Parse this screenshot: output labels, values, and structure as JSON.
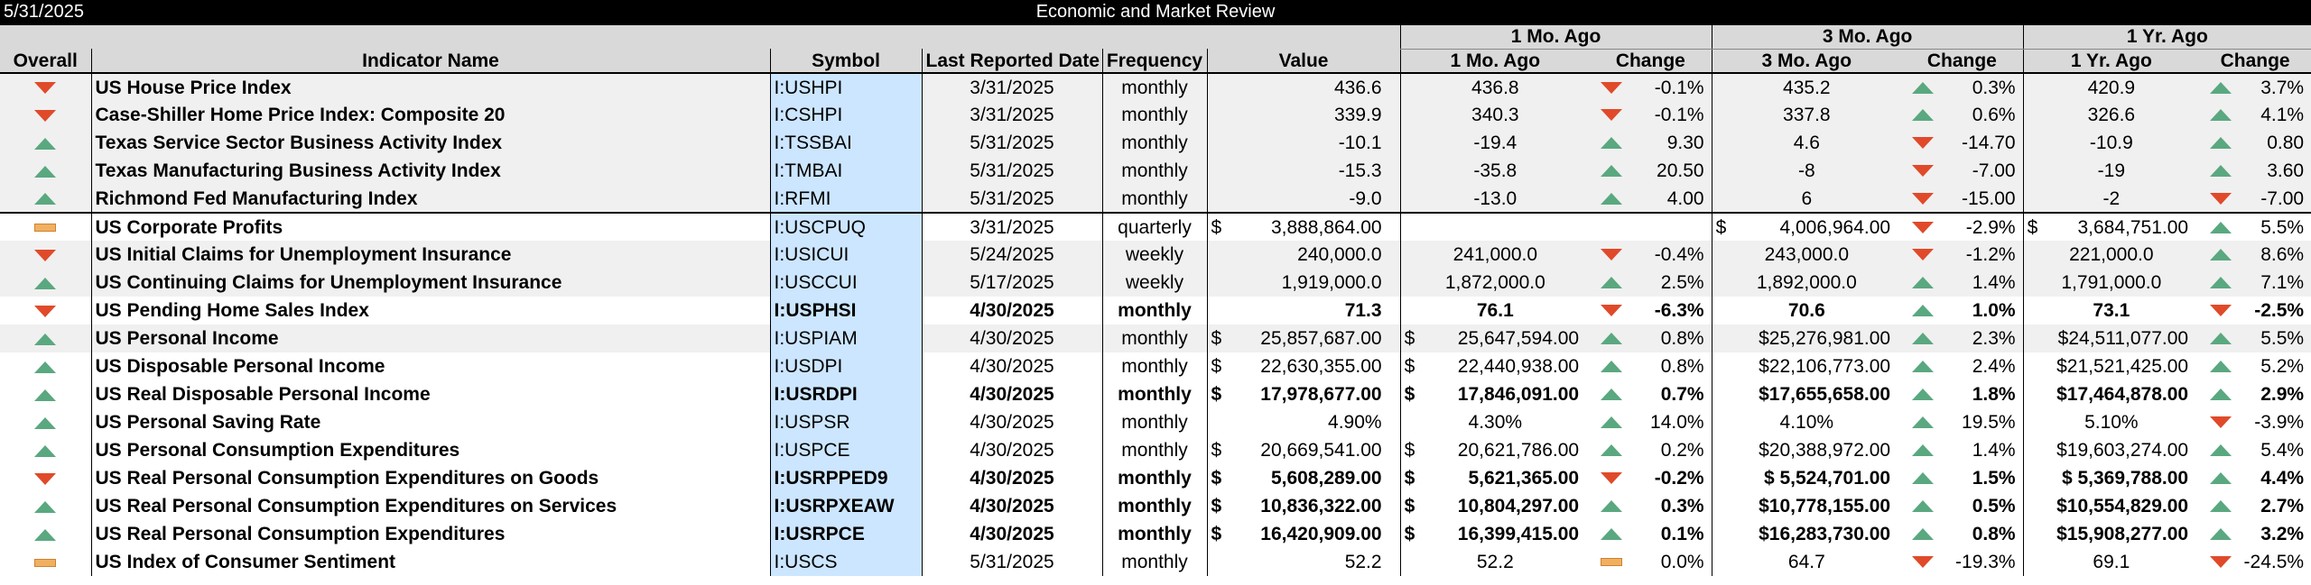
{
  "header": {
    "date": "5/31/2025",
    "title": "Economic and Market Review",
    "group_labels": [
      "1 Mo. Ago",
      "3 Mo. Ago",
      "1 Yr. Ago"
    ],
    "columns": [
      "Overall",
      "Indicator Name",
      "Symbol",
      "Last Reported Date",
      "Frequency",
      "Value",
      "1 Mo. Ago",
      "Change",
      "3 Mo. Ago",
      "Change",
      "1 Yr. Ago",
      "Change"
    ]
  },
  "colors": {
    "up": "#5aa880",
    "down": "#e04a2a",
    "flat": "#f0b060",
    "symbol_bg": "#cce6ff"
  },
  "rows": [
    {
      "overall": "down",
      "name": "US House Price Index",
      "symbol": "I:USHPI",
      "date": "3/31/2025",
      "freq": "monthly",
      "value": "436.6",
      "m1": "436.8",
      "m1_dir": "down",
      "m1_chg": "-0.1%",
      "m3": "435.2",
      "m3_dir": "up",
      "m3_chg": "0.3%",
      "y1": "420.9",
      "y1_dir": "up",
      "y1_chg": "3.7%",
      "group": "g1",
      "bold": false,
      "money": false
    },
    {
      "overall": "down",
      "name": "Case-Shiller Home Price Index: Composite 20",
      "symbol": "I:CSHPI",
      "date": "3/31/2025",
      "freq": "monthly",
      "value": "339.9",
      "m1": "340.3",
      "m1_dir": "down",
      "m1_chg": "-0.1%",
      "m3": "337.8",
      "m3_dir": "up",
      "m3_chg": "0.6%",
      "y1": "326.6",
      "y1_dir": "up",
      "y1_chg": "4.1%",
      "group": "g1",
      "bold": false,
      "money": false
    },
    {
      "overall": "up",
      "name": "Texas Service Sector Business Activity Index",
      "symbol": "I:TSSBAI",
      "date": "5/31/2025",
      "freq": "monthly",
      "value": "-10.1",
      "m1": "-19.4",
      "m1_dir": "up",
      "m1_chg": "9.30",
      "m3": "4.6",
      "m3_dir": "down",
      "m3_chg": "-14.70",
      "y1": "-10.9",
      "y1_dir": "up",
      "y1_chg": "0.80",
      "group": "g1",
      "bold": false,
      "money": false
    },
    {
      "overall": "up",
      "name": "Texas Manufacturing Business Activity Index",
      "symbol": "I:TMBAI",
      "date": "5/31/2025",
      "freq": "monthly",
      "value": "-15.3",
      "m1": "-35.8",
      "m1_dir": "up",
      "m1_chg": "20.50",
      "m3": "-8",
      "m3_dir": "down",
      "m3_chg": "-7.00",
      "y1": "-19",
      "y1_dir": "up",
      "y1_chg": "3.60",
      "group": "g1",
      "bold": false,
      "money": false
    },
    {
      "overall": "up",
      "name": "Richmond Fed Manufacturing Index",
      "symbol": "I:RFMI",
      "date": "5/31/2025",
      "freq": "monthly",
      "value": "-9.0",
      "m1": "-13.0",
      "m1_dir": "up",
      "m1_chg": "4.00",
      "m3": "6",
      "m3_dir": "down",
      "m3_chg": "-15.00",
      "y1": "-2",
      "y1_dir": "down",
      "y1_chg": "-7.00",
      "group": "g1",
      "bold": false,
      "money": false
    },
    {
      "overall": "flat",
      "name": "US Corporate Profits",
      "symbol": "I:USCPUQ",
      "date": "3/31/2025",
      "freq": "quarterly",
      "value": "3,888,864.00",
      "m1": "",
      "m1_dir": "",
      "m1_chg": "",
      "m3": "4,006,964.00",
      "m3_dir": "down",
      "m3_chg": "-2.9%",
      "y1": "3,684,751.00",
      "y1_dir": "up",
      "y1_chg": "5.5%",
      "group": "g2",
      "bold": false,
      "money": true,
      "sep": true
    },
    {
      "overall": "down",
      "name": "US Initial Claims for Unemployment Insurance",
      "symbol": "I:USICUI",
      "date": "5/24/2025",
      "freq": "weekly",
      "value": "240,000.0",
      "m1": "241,000.0",
      "m1_dir": "down",
      "m1_chg": "-0.4%",
      "m3": "243,000.0",
      "m3_dir": "down",
      "m3_chg": "-1.2%",
      "y1": "221,000.0",
      "y1_dir": "up",
      "y1_chg": "8.6%",
      "group": "g1",
      "bold": false,
      "money": false
    },
    {
      "overall": "up",
      "name": "US Continuing Claims for Unemployment Insurance",
      "symbol": "I:USCCUI",
      "date": "5/17/2025",
      "freq": "weekly",
      "value": "1,919,000.0",
      "m1": "1,872,000.0",
      "m1_dir": "up",
      "m1_chg": "2.5%",
      "m3": "1,892,000.0",
      "m3_dir": "up",
      "m3_chg": "1.4%",
      "y1": "1,791,000.0",
      "y1_dir": "up",
      "y1_chg": "7.1%",
      "group": "g1",
      "bold": false,
      "money": false
    },
    {
      "overall": "down",
      "name": "US Pending Home Sales Index",
      "symbol": "I:USPHSI",
      "date": "4/30/2025",
      "freq": "monthly",
      "value": "71.3",
      "m1": "76.1",
      "m1_dir": "down",
      "m1_chg": "-6.3%",
      "m3": "70.6",
      "m3_dir": "up",
      "m3_chg": "1.0%",
      "y1": "73.1",
      "y1_dir": "down",
      "y1_chg": "-2.5%",
      "group": "g2",
      "bold": true,
      "money": false,
      "boldvals": false
    },
    {
      "overall": "up",
      "name": "US Personal Income",
      "symbol": "I:USPIAM",
      "date": "4/30/2025",
      "freq": "monthly",
      "value": "25,857,687.00",
      "m1": "25,647,594.00",
      "m1_dir": "up",
      "m1_chg": "0.8%",
      "m3": "$25,276,981.00",
      "m3_dir": "up",
      "m3_chg": "2.3%",
      "y1": "$24,511,077.00",
      "y1_dir": "up",
      "y1_chg": "5.5%",
      "group": "g1",
      "bold": false,
      "money": true
    },
    {
      "overall": "up",
      "name": "US Disposable Personal Income",
      "symbol": "I:USDPI",
      "date": "4/30/2025",
      "freq": "monthly",
      "value": "22,630,355.00",
      "m1": "22,440,938.00",
      "m1_dir": "up",
      "m1_chg": "0.8%",
      "m3": "$22,106,773.00",
      "m3_dir": "up",
      "m3_chg": "2.4%",
      "y1": "$21,521,425.00",
      "y1_dir": "up",
      "y1_chg": "5.2%",
      "group": "g2",
      "bold": false,
      "money": true,
      "boldname": true
    },
    {
      "overall": "up",
      "name": "US Real Disposable Personal Income",
      "symbol": "I:USRDPI",
      "date": "4/30/2025",
      "freq": "monthly",
      "value": "17,978,677.00",
      "m1": "17,846,091.00",
      "m1_dir": "up",
      "m1_chg": "0.7%",
      "m3": "$17,655,658.00",
      "m3_dir": "up",
      "m3_chg": "1.8%",
      "y1": "$17,464,878.00",
      "y1_dir": "up",
      "y1_chg": "2.9%",
      "group": "g2",
      "bold": true,
      "money": true
    },
    {
      "overall": "up",
      "name": "US Personal Saving Rate",
      "symbol": "I:USPSR",
      "date": "4/30/2025",
      "freq": "monthly",
      "value": "4.90%",
      "m1": "4.30%",
      "m1_dir": "up",
      "m1_chg": "14.0%",
      "m3": "4.10%",
      "m3_dir": "up",
      "m3_chg": "19.5%",
      "y1": "5.10%",
      "y1_dir": "down",
      "y1_chg": "-3.9%",
      "group": "g2",
      "bold": false,
      "money": false,
      "boldname": true
    },
    {
      "overall": "up",
      "name": "US Personal Consumption Expenditures",
      "symbol": "I:USPCE",
      "date": "4/30/2025",
      "freq": "monthly",
      "value": "20,669,541.00",
      "m1": "20,621,786.00",
      "m1_dir": "up",
      "m1_chg": "0.2%",
      "m3": "$20,388,972.00",
      "m3_dir": "up",
      "m3_chg": "1.4%",
      "y1": "$19,603,274.00",
      "y1_dir": "up",
      "y1_chg": "5.4%",
      "group": "g2",
      "bold": false,
      "money": true,
      "boldname": true
    },
    {
      "overall": "down",
      "name": "US Real Personal Consumption Expenditures on Goods",
      "symbol": "I:USRPPED9",
      "date": "4/30/2025",
      "freq": "monthly",
      "value": "5,608,289.00",
      "m1": "5,621,365.00",
      "m1_dir": "down",
      "m1_chg": "-0.2%",
      "m3": "$ 5,524,701.00",
      "m3_dir": "up",
      "m3_chg": "1.5%",
      "y1": "$ 5,369,788.00",
      "y1_dir": "up",
      "y1_chg": "4.4%",
      "group": "g2",
      "bold": true,
      "money": true
    },
    {
      "overall": "up",
      "name": "US Real Personal Consumption Expenditures on Services",
      "symbol": "I:USRPXEAW",
      "date": "4/30/2025",
      "freq": "monthly",
      "value": "10,836,322.00",
      "m1": "10,804,297.00",
      "m1_dir": "up",
      "m1_chg": "0.3%",
      "m3": "$10,778,155.00",
      "m3_dir": "up",
      "m3_chg": "0.5%",
      "y1": "$10,554,829.00",
      "y1_dir": "up",
      "y1_chg": "2.7%",
      "group": "g2",
      "bold": true,
      "money": true
    },
    {
      "overall": "up",
      "name": "US Real Personal Consumption Expenditures",
      "symbol": "I:USRPCE",
      "date": "4/30/2025",
      "freq": "monthly",
      "value": "16,420,909.00",
      "m1": "16,399,415.00",
      "m1_dir": "up",
      "m1_chg": "0.1%",
      "m3": "$16,283,730.00",
      "m3_dir": "up",
      "m3_chg": "0.8%",
      "y1": "$15,908,277.00",
      "y1_dir": "up",
      "y1_chg": "3.2%",
      "group": "g2",
      "bold": true,
      "money": true
    },
    {
      "overall": "flat",
      "name": "US Index of Consumer Sentiment",
      "symbol": "I:USCS",
      "date": "5/31/2025",
      "freq": "monthly",
      "value": "52.2",
      "m1": "52.2",
      "m1_dir": "flat",
      "m1_chg": "0.0%",
      "m3": "64.7",
      "m3_dir": "down",
      "m3_chg": "-19.3%",
      "y1": "69.1",
      "y1_dir": "down",
      "y1_chg": "-24.5%",
      "group": "g2",
      "bold": false,
      "money": false,
      "boldname": true
    }
  ]
}
